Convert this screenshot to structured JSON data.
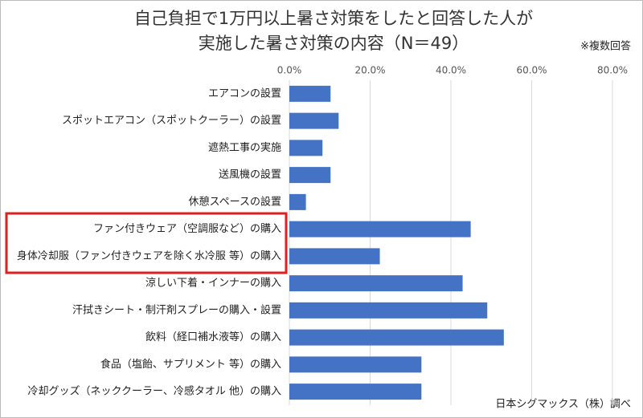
{
  "chart_data": {
    "type": "bar",
    "orientation": "horizontal",
    "title_lines": [
      "自己負担で1万円以上暑さ対策をしたと回答した人が",
      "実施した暑さ対策の内容（N＝49）"
    ],
    "note": "※複数回答",
    "source": "日本シグマックス（株）調べ",
    "categories": [
      "エアコンの設置",
      "スポットエアコン（スポットクーラー）の設置",
      "遮熱工事の実施",
      "送風機の設置",
      "休憩スペースの設置",
      "ファン付きウェア（空調服など）の購入",
      "身体冷却服（ファン付きウェアを除く水冷服 等）の購入",
      "涼しい下着・インナーの購入",
      "汗拭きシート・制汗剤スプレーの購入・設置",
      "飲料（経口補水液等）の購入",
      "食品（塩飴、サプリメント 等）の購入",
      "冷却グッズ（ネッククーラー、冷感タオル 他）の購入"
    ],
    "values": [
      10.2,
      12.2,
      8.2,
      10.2,
      4.1,
      44.9,
      22.4,
      42.9,
      49.0,
      53.1,
      32.7,
      32.7
    ],
    "color": "#4472c4",
    "xlim": [
      0,
      80
    ],
    "xticks": [
      {
        "value": 0,
        "label": "0.0%"
      },
      {
        "value": 20,
        "label": "20.0%"
      },
      {
        "value": 40,
        "label": "40.0%"
      },
      {
        "value": 60,
        "label": "60.0%"
      },
      {
        "value": 80,
        "label": "80.0%"
      }
    ],
    "grid": true
  }
}
